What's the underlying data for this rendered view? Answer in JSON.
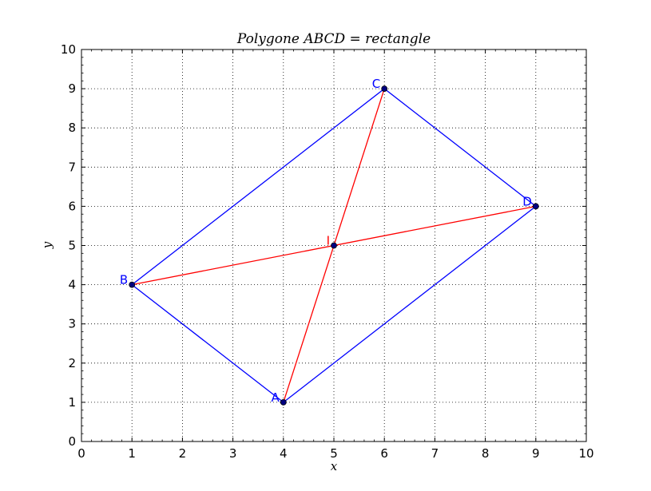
{
  "chart_data": {
    "type": "line",
    "title": "Polygone ABCD = rectangle",
    "xlabel": "x",
    "ylabel": "y",
    "xlim": [
      0,
      10
    ],
    "ylim": [
      0,
      10
    ],
    "xticks": [
      "0",
      "1",
      "2",
      "3",
      "4",
      "5",
      "6",
      "7",
      "8",
      "9",
      "10"
    ],
    "yticks": [
      "0",
      "1",
      "2",
      "3",
      "4",
      "5",
      "6",
      "7",
      "8",
      "9",
      "10"
    ],
    "grid": true,
    "legend": "none",
    "points": [
      {
        "label": "A",
        "x": 4,
        "y": 1,
        "color": "#0000ff"
      },
      {
        "label": "B",
        "x": 1,
        "y": 4,
        "color": "#0000ff"
      },
      {
        "label": "C",
        "x": 6,
        "y": 9,
        "color": "#0000ff"
      },
      {
        "label": "D",
        "x": 9,
        "y": 6,
        "color": "#0000ff"
      },
      {
        "label": "I",
        "x": 5,
        "y": 5,
        "color": "#ff0000"
      }
    ],
    "series": [
      {
        "x": [
          4,
          1,
          6,
          9,
          4
        ],
        "y": [
          1,
          4,
          9,
          6,
          1
        ],
        "color": "#0000ff"
      },
      {
        "x": [
          4,
          6
        ],
        "y": [
          1,
          9
        ],
        "color": "#ff0000"
      },
      {
        "x": [
          1,
          9
        ],
        "y": [
          4,
          6
        ],
        "color": "#ff0000"
      }
    ]
  }
}
